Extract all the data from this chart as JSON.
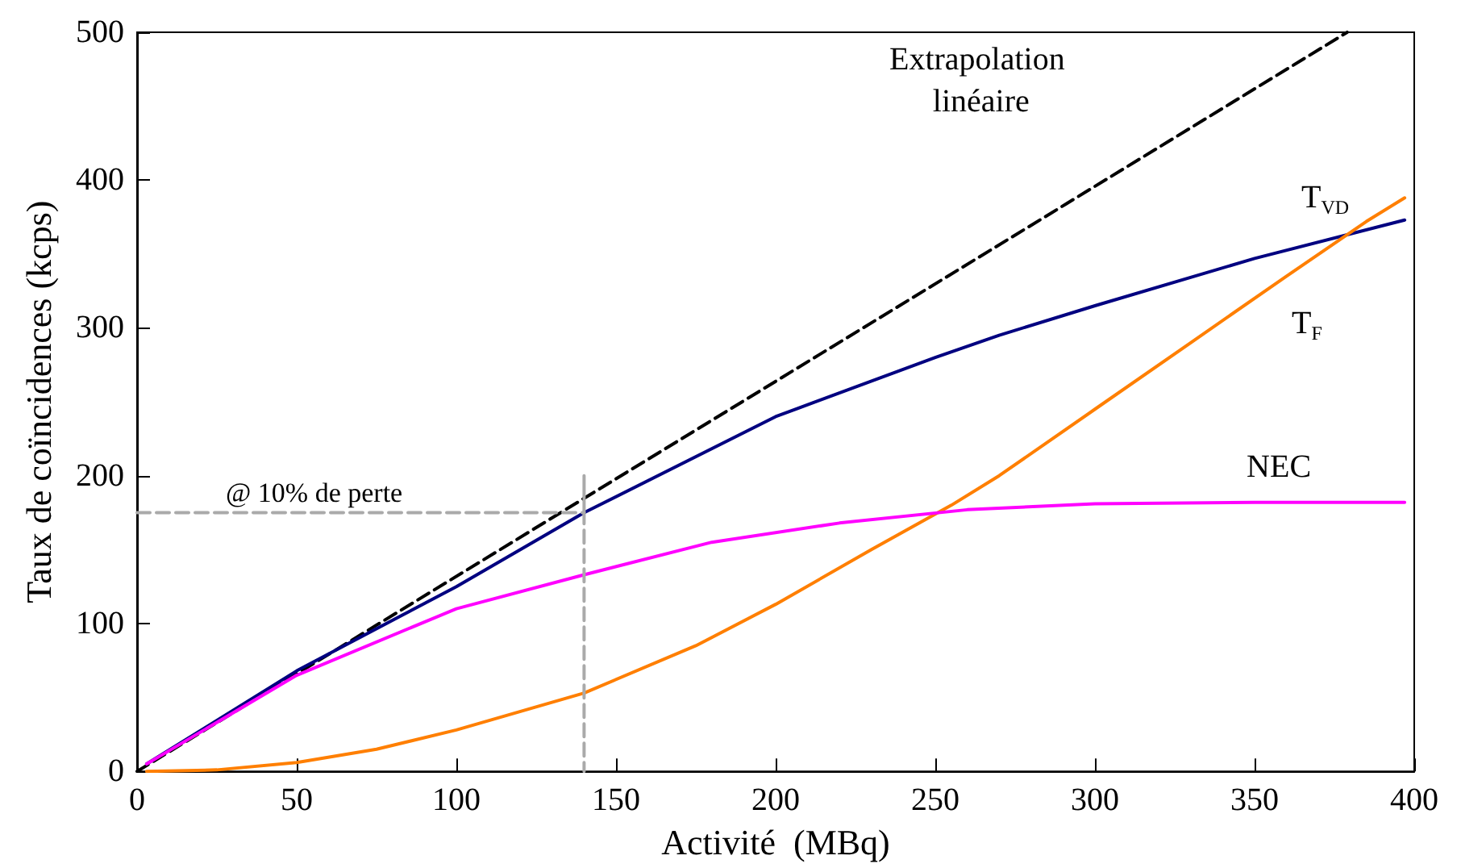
{
  "chart_data": {
    "type": "line",
    "xlabel": "Activité  (MBq)",
    "ylabel": "Taux de coïncidences (kcps)",
    "xlim": [
      0,
      400
    ],
    "ylim": [
      0,
      500
    ],
    "xticks": [
      0,
      50,
      100,
      150,
      200,
      250,
      300,
      350,
      400
    ],
    "yticks": [
      0,
      100,
      200,
      300,
      400,
      500
    ],
    "grid": false,
    "legend": false,
    "marker": "none",
    "annotations": [
      "@ 10% de perte"
    ],
    "series": [
      {
        "name": "Extrapolation linéaire",
        "color": "#000000",
        "line_style": "dashed",
        "x": [
          0,
          379
        ],
        "values": [
          0,
          500
        ]
      },
      {
        "name": "T$_{VD}$",
        "color": "#000080",
        "x": [
          3,
          50,
          100,
          140,
          200,
          250,
          270,
          300,
          350,
          397
        ],
        "values": [
          5,
          68,
          125,
          175,
          240,
          280,
          295,
          315,
          347,
          373
        ]
      },
      {
        "name": "T$_{F}$",
        "color": "#ff7f00",
        "x": [
          3,
          25,
          50,
          75,
          100,
          140,
          175,
          200,
          230,
          255,
          270,
          300,
          330,
          360,
          385,
          397
        ],
        "values": [
          0,
          1,
          6,
          15,
          28,
          53,
          85,
          113,
          150,
          180,
          200,
          245,
          290,
          335,
          372,
          388
        ]
      },
      {
        "name": "NEC",
        "color": "#ff00ff",
        "x": [
          3,
          50,
          100,
          140,
          180,
          220,
          260,
          300,
          350,
          397
        ],
        "values": [
          5,
          65,
          110,
          133,
          155,
          168,
          177,
          181,
          182,
          182
        ]
      },
      {
        "color": "#aaaaaa",
        "line_style": "dashed",
        "x": [
          0,
          140,
          140
        ],
        "values": [
          175,
          175,
          0
        ]
      },
      {
        "color": "#aaaaaa",
        "line_style": "solid",
        "x": [
          140,
          140
        ],
        "values": [
          175,
          200
        ]
      }
    ]
  }
}
